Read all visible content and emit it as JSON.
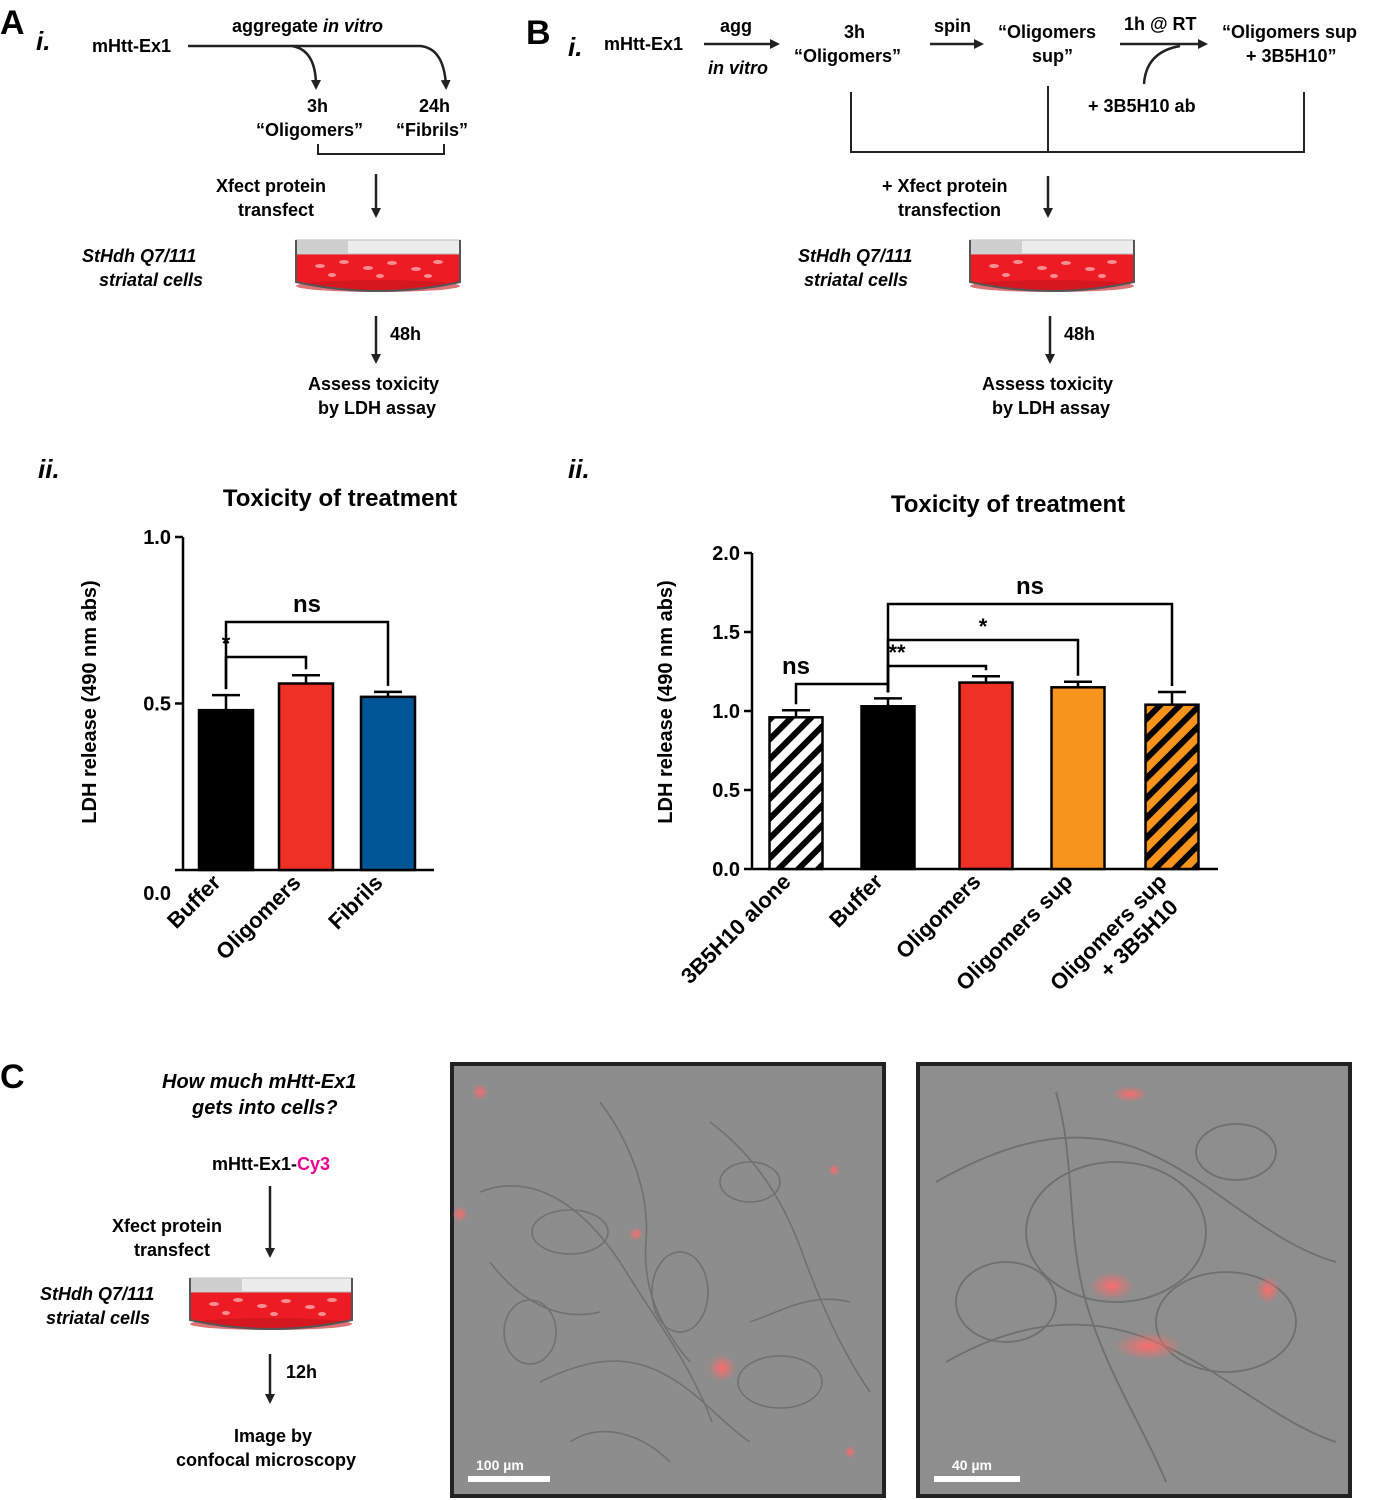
{
  "panels": {
    "A": {
      "letter": "A",
      "sub_i": "i.",
      "sub_ii": "ii.",
      "scheme": {
        "start": "mHtt-Ex1",
        "aggregate_prefix": "aggregate ",
        "aggregate_italic": "in vitro",
        "t3h": "3h",
        "oligomers": "“Oligomers”",
        "t24h": "24h",
        "fibrils": "“Fibrils”",
        "xfect_1": "Xfect protein",
        "xfect_2": "transfect",
        "cells_1": "StHdh Q7/111",
        "cells_2": "striatal cells",
        "t48h": "48h",
        "assess_1": "Assess toxicity",
        "assess_2": "by LDH assay"
      }
    },
    "B": {
      "letter": "B",
      "sub_i": "i.",
      "sub_ii": "ii.",
      "scheme": {
        "start": "mHtt-Ex1",
        "agg": "agg",
        "in_vitro": "in vitro",
        "t3h": "3h",
        "oligomers": "“Oligomers”",
        "spin": "spin",
        "olig_sup_1": "“Oligomers",
        "olig_sup_2": "sup”",
        "rt": "1h @ RT",
        "ab": "+ 3B5H10 ab",
        "final_1": "“Oligomers sup",
        "final_2": "+ 3B5H10”",
        "xfect_1": "+ Xfect protein",
        "xfect_2": "transfection",
        "cells_1": "StHdh Q7/111",
        "cells_2": "striatal cells",
        "t48h": "48h",
        "assess_1": "Assess toxicity",
        "assess_2": "by LDH assay"
      }
    },
    "C": {
      "letter": "C",
      "question_1": "How much mHtt-Ex1",
      "question_2": "gets into cells?",
      "label_prefix": "mHtt-Ex1-",
      "label_dye": "Cy3",
      "xfect_1": "Xfect protein",
      "xfect_2": "transfect",
      "cells_1": "StHdh Q7/111",
      "cells_2": "striatal cells",
      "t12h": "12h",
      "image_1": "Image by",
      "image_2": "confocal microscopy",
      "scalebar_1": "100 µm",
      "scalebar_2": "40 µm"
    }
  },
  "colors": {
    "black": "#000000",
    "red": "#ee3124",
    "blue": "#005596",
    "orange": "#f7941d",
    "dish_red": "#ed1c24",
    "cy3": "#ec008c"
  },
  "chart_data": [
    {
      "type": "bar",
      "title": "Toxicity of treatment",
      "ylabel": "LDH release (490 nm abs)",
      "ylim": [
        0,
        1.0
      ],
      "yticks": [
        "0.0",
        "0.5",
        "1.0"
      ],
      "categories": [
        "Buffer",
        "Oligomers",
        "Fibrils"
      ],
      "values": [
        0.48,
        0.56,
        0.52
      ],
      "errors": [
        0.045,
        0.025,
        0.015
      ],
      "bar_colors": [
        "#000000",
        "#ee3124",
        "#005596"
      ],
      "significance": [
        {
          "from": 0,
          "to": 1,
          "label": "*"
        },
        {
          "from": 0,
          "to": 2,
          "label": "ns"
        }
      ]
    },
    {
      "type": "bar",
      "title": "Toxicity of treatment",
      "ylabel": "LDH release (490 nm abs)",
      "ylim": [
        0,
        2.0
      ],
      "yticks": [
        "0.0",
        "0.5",
        "1.0",
        "1.5",
        "2.0"
      ],
      "categories": [
        "3B5H10 alone",
        "Buffer",
        "Oligomers",
        "Oligomers sup",
        "Oligomers sup"
      ],
      "categories_line2": [
        "",
        "",
        "",
        "",
        "+ 3B5H10"
      ],
      "values": [
        0.96,
        1.03,
        1.18,
        1.15,
        1.04
      ],
      "errors": [
        0.045,
        0.05,
        0.04,
        0.035,
        0.08
      ],
      "bar_colors": [
        "#ffffff",
        "#000000",
        "#ee3124",
        "#f7941d",
        "#f7941d"
      ],
      "hatched": [
        true,
        false,
        false,
        false,
        true
      ],
      "significance": [
        {
          "from": 0,
          "to": 1,
          "label": "ns"
        },
        {
          "from": 1,
          "to": 2,
          "label": "**"
        },
        {
          "from": 1,
          "to": 3,
          "label": "*"
        },
        {
          "from": 1,
          "to": 4,
          "label": "ns"
        }
      ]
    }
  ]
}
